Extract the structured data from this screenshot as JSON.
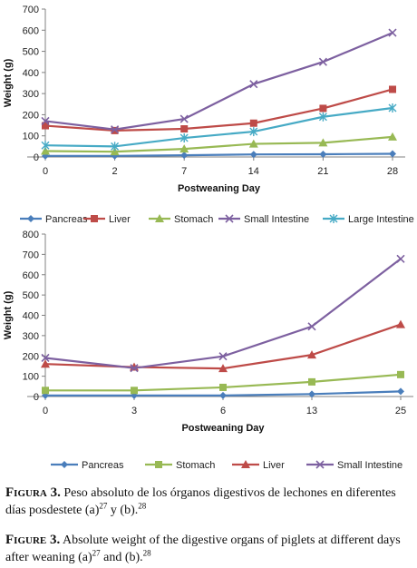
{
  "chart_data": [
    {
      "type": "line",
      "title": "",
      "xlabel": "Postweaning Day",
      "ylabel": "Weight (g)",
      "categories": [
        "0",
        "2",
        "7",
        "14",
        "21",
        "28"
      ],
      "ylim": [
        0,
        700
      ],
      "yticks": [
        "0",
        "100",
        "200",
        "300",
        "400",
        "500",
        "600",
        "700"
      ],
      "grid": false,
      "legend_position": "bottom",
      "series": [
        {
          "name": "Pancreas",
          "color": "#4a7ebb",
          "marker": "diamond",
          "values": [
            5,
            5,
            8,
            12,
            13,
            15
          ]
        },
        {
          "name": "Liver",
          "color": "#be4b48",
          "marker": "square",
          "values": [
            148,
            125,
            133,
            160,
            230,
            320
          ]
        },
        {
          "name": "Stomach",
          "color": "#98b954",
          "marker": "triangle",
          "values": [
            28,
            25,
            38,
            62,
            67,
            95
          ]
        },
        {
          "name": "Small Intestine",
          "color": "#7d60a0",
          "marker": "x",
          "values": [
            170,
            130,
            180,
            345,
            450,
            588
          ]
        },
        {
          "name": "Large Intestine",
          "color": "#46aac5",
          "marker": "star",
          "values": [
            55,
            50,
            90,
            120,
            190,
            232
          ]
        }
      ]
    },
    {
      "type": "line",
      "title": "",
      "xlabel": "Postweaning Day",
      "ylabel": "Weight (g)",
      "categories": [
        "0",
        "3",
        "6",
        "13",
        "25"
      ],
      "ylim": [
        0,
        800
      ],
      "yticks": [
        "0",
        "100",
        "200",
        "300",
        "400",
        "500",
        "600",
        "700",
        "800"
      ],
      "grid": false,
      "legend_position": "bottom",
      "series": [
        {
          "name": "Pancreas",
          "color": "#4a7ebb",
          "marker": "diamond",
          "values": [
            5,
            5,
            5,
            12,
            25
          ]
        },
        {
          "name": "Stomach",
          "color": "#98b954",
          "marker": "square",
          "values": [
            30,
            30,
            45,
            72,
            108
          ]
        },
        {
          "name": "Liver",
          "color": "#be4b48",
          "marker": "triangle",
          "values": [
            160,
            145,
            138,
            205,
            355
          ]
        },
        {
          "name": "Small Intestine",
          "color": "#7d60a0",
          "marker": "x",
          "values": [
            190,
            140,
            198,
            345,
            678
          ]
        }
      ]
    }
  ],
  "caption": {
    "es_lead": "Figura 3.",
    "es_text": "Peso absoluto de los órganos digestivos de lechones en diferentes días posdestete (a)",
    "es_ref_a": "27",
    "es_mid": " y (b).",
    "es_ref_b": "28",
    "en_lead": "Figure 3.",
    "en_text": "Absolute weight of the digestive organs of piglets at different days after weaning (a)",
    "en_ref_a": "27",
    "en_mid": " and (b).",
    "en_ref_b": "28"
  }
}
